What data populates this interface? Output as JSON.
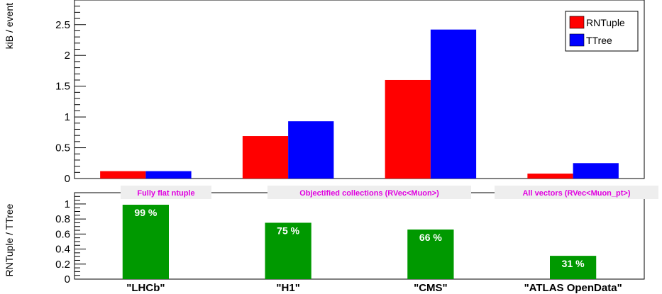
{
  "colors": {
    "rntuple": "#ff0000",
    "ttree": "#0000ff",
    "ratio": "#009900",
    "annotation_text": "#e000e0",
    "annotation_bg": "#eeeeee"
  },
  "chart_data": [
    {
      "type": "bar",
      "ylabel": "kiB / event",
      "ylim": [
        0,
        2.9
      ],
      "yticks": [
        "0",
        "0.5",
        "1",
        "1.5",
        "2",
        "2.5"
      ],
      "categories": [
        "\"LHCb\"",
        "\"H1\"",
        "\"CMS\"",
        "\"ATLAS OpenData\""
      ],
      "series": [
        {
          "name": "RNTuple",
          "values": [
            0.12,
            0.69,
            1.6,
            0.08
          ]
        },
        {
          "name": "TTree",
          "values": [
            0.12,
            0.93,
            2.42,
            0.25
          ]
        }
      ],
      "legend": "top-right",
      "grid": false
    },
    {
      "type": "bar",
      "ylabel": "RNTuple / TTree",
      "ylim": [
        0,
        1.15
      ],
      "yticks": [
        "0",
        "0.2",
        "0.4",
        "0.6",
        "0.8",
        "1"
      ],
      "categories": [
        "\"LHCb\"",
        "\"H1\"",
        "\"CMS\"",
        "\"ATLAS OpenData\""
      ],
      "values": [
        0.99,
        0.75,
        0.66,
        0.31
      ],
      "data_labels": [
        "99 %",
        "75 %",
        "66 %",
        "31 %"
      ],
      "annotations": [
        "Fully flat ntuple",
        "Objectified collections (RVec<Muon>)",
        "All vectors (RVec<Muon_pt>)"
      ],
      "grid": false
    }
  ]
}
